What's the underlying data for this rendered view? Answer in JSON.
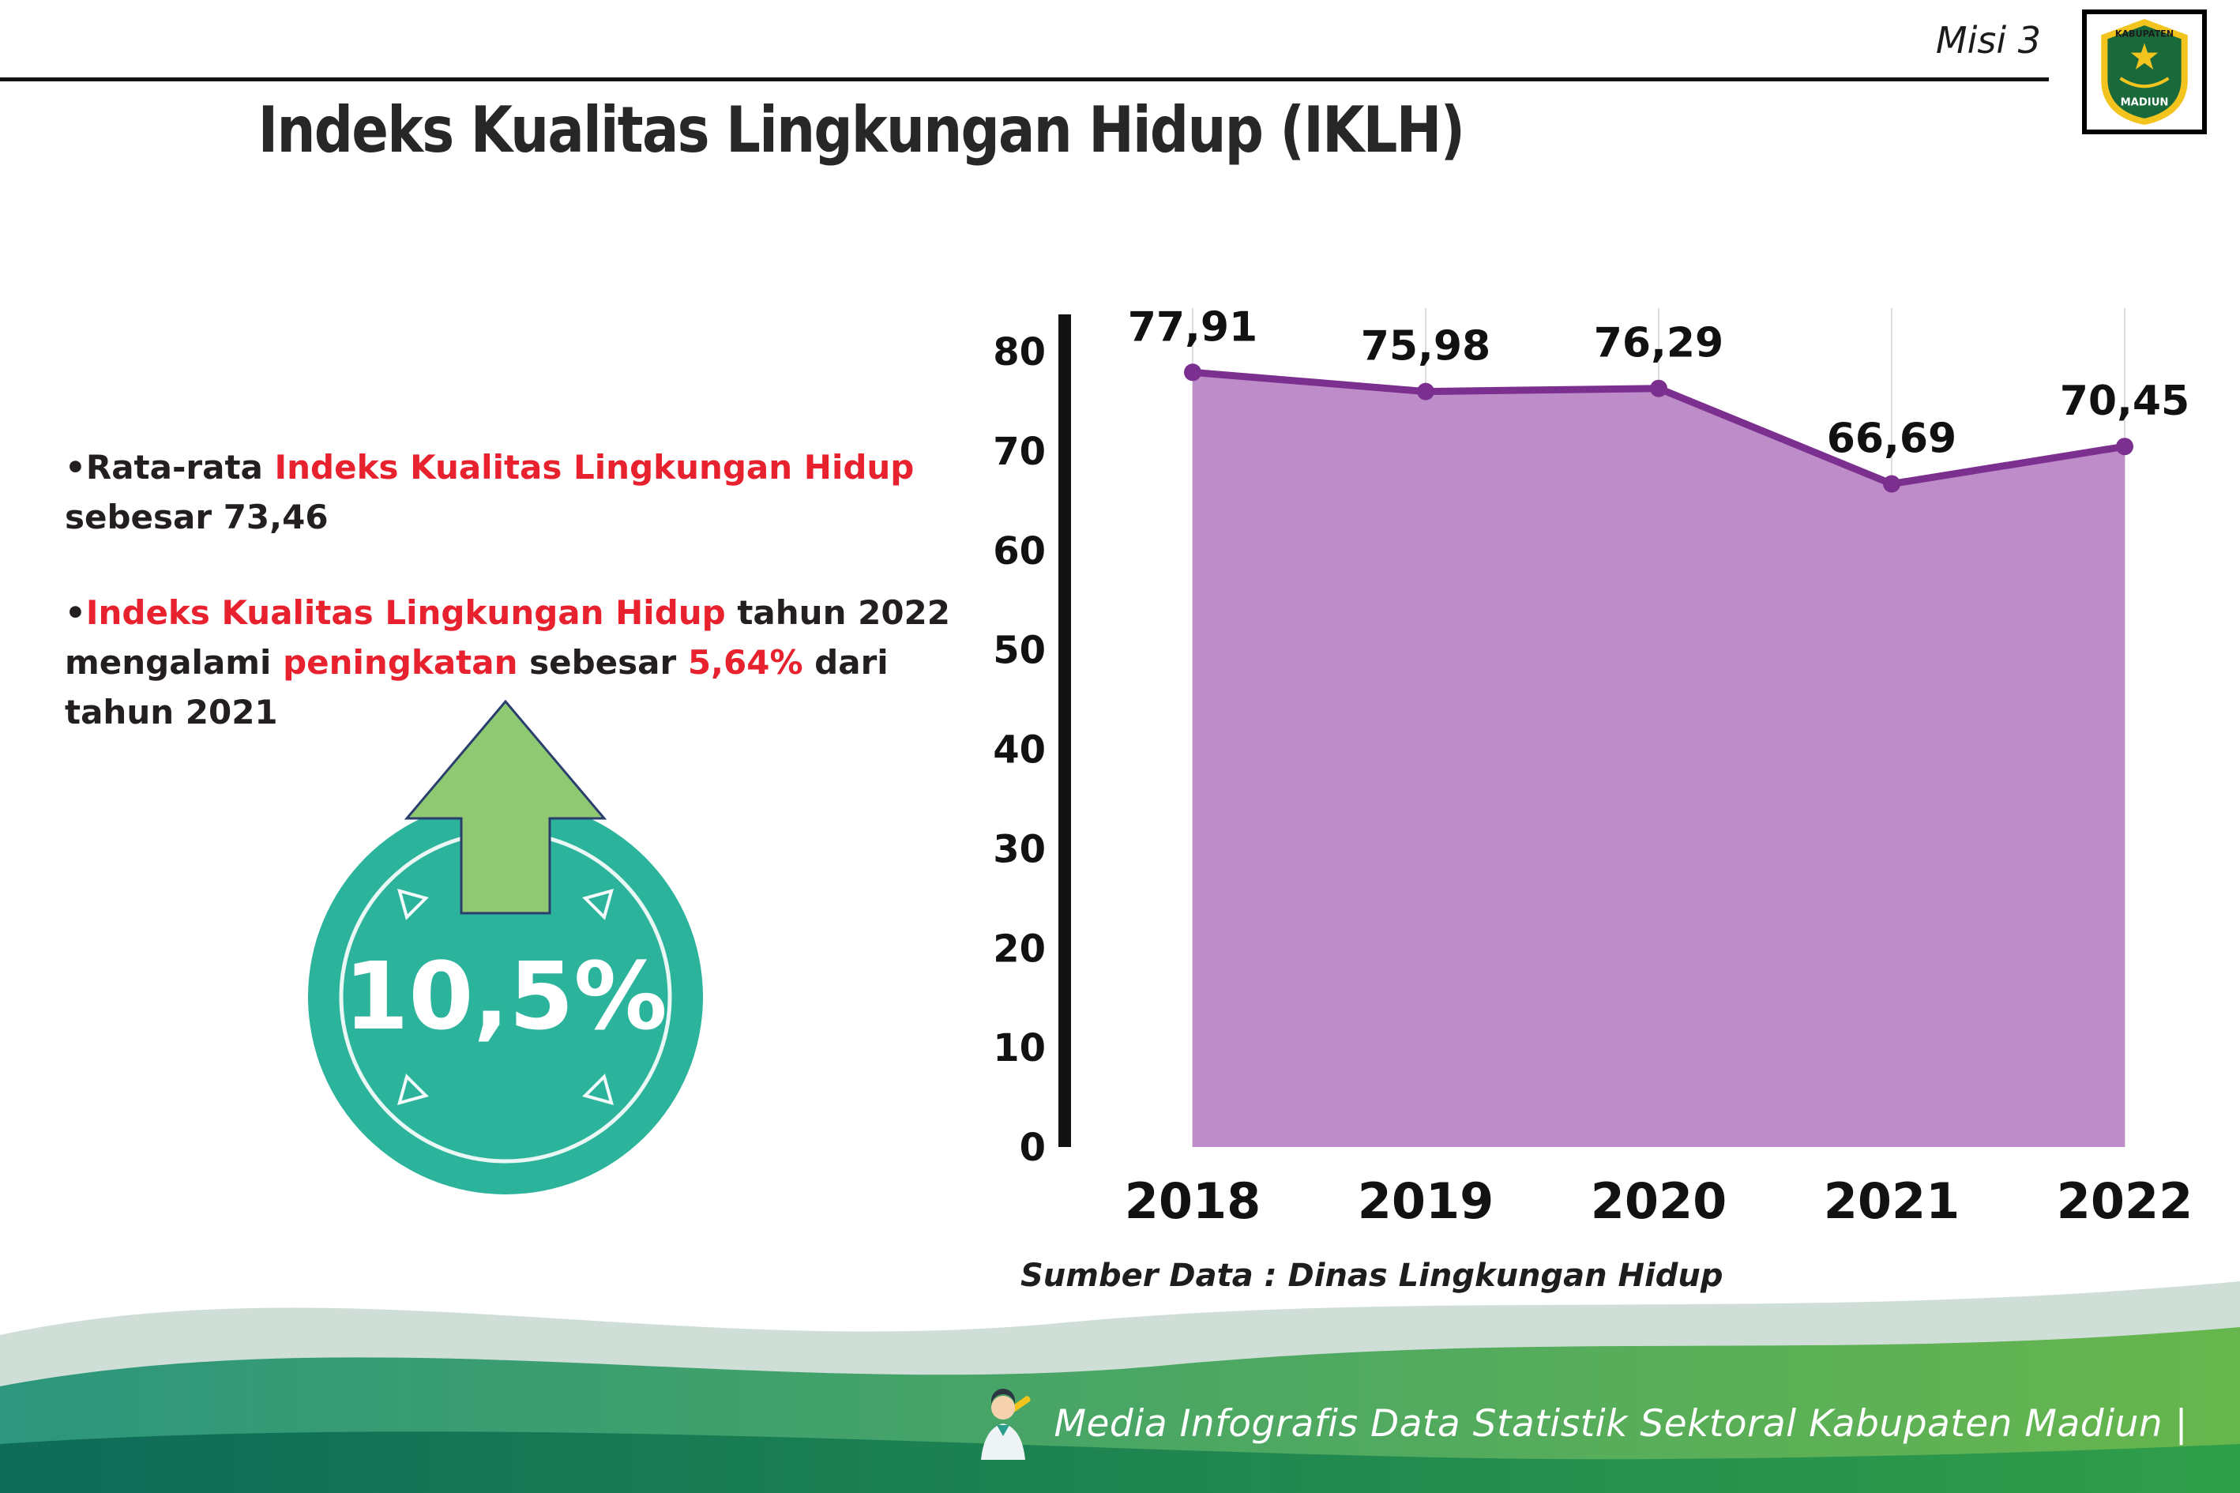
{
  "header": {
    "misi_label": "Misi 3",
    "title": "Indeks Kualitas Lingkungan Hidup (IKLH)"
  },
  "logo": {
    "top_text": "KABUPATEN",
    "bottom_text": "MADIUN"
  },
  "bullets": {
    "marker": "•",
    "b1": {
      "s1": "Rata-rata ",
      "s2": "Indeks Kualitas Lingkungan Hidup",
      "s3": " sebesar 73,46"
    },
    "b2": {
      "s1": "Indeks Kualitas Lingkungan Hidup",
      "s2": " tahun 2022 mengalami ",
      "s3": "peningkatan",
      "s4": " sebesar ",
      "s5": "5,64%",
      "s6": " dari tahun 2021"
    }
  },
  "badge": {
    "value": "10,5%",
    "circle_color": "#2cb39c",
    "arrow_color": "#8fc972"
  },
  "chart_data": {
    "type": "area",
    "title": "Indeks Kualitas Lingkungan Hidup (IKLH)",
    "categories": [
      "2018",
      "2019",
      "2020",
      "2021",
      "2022"
    ],
    "values": [
      77.91,
      75.98,
      76.29,
      66.69,
      70.45
    ],
    "point_labels": [
      "77,91",
      "75,98",
      "76,29",
      "66,69",
      "70,45"
    ],
    "xlabel": "",
    "ylabel": "",
    "ylim": [
      0,
      80
    ],
    "yticks": [
      0,
      10,
      20,
      30,
      40,
      50,
      60,
      70,
      80
    ],
    "grid": "vertical-light",
    "legend": "none",
    "line_color": "#7b2f8e",
    "fill_color": "#bd8cc9",
    "source": "Sumber Data : Dinas Lingkungan Hidup"
  },
  "footer": {
    "text": "Media Infografis Data Statistik Sektoral Kabupaten Madiun |"
  },
  "colors": {
    "accent_red": "#e8212e",
    "title_black": "#272727",
    "footer_teal": "#2d967c",
    "footer_green": "#2f9e49"
  }
}
